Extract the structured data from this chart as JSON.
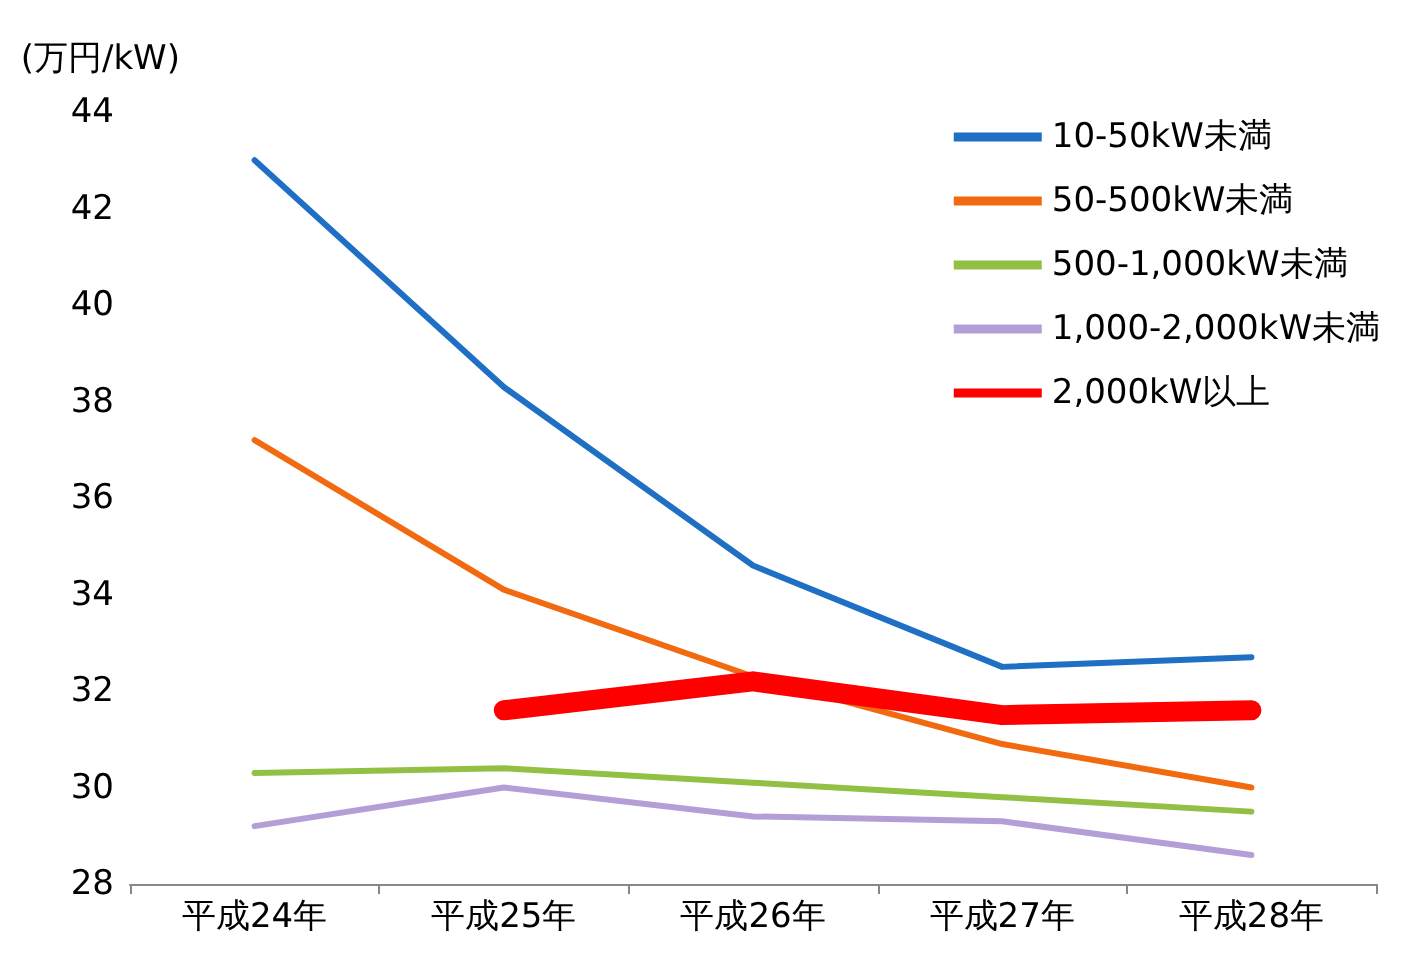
{
  "chart_data": {
    "type": "line",
    "ylabel": "(万円/kW)",
    "categories": [
      "平成24年",
      "平成25年",
      "平成26年",
      "平成27年",
      "平成28年"
    ],
    "ylim": [
      28,
      44
    ],
    "yticks": [
      28,
      30,
      32,
      34,
      36,
      38,
      40,
      42,
      44
    ],
    "grid": false,
    "legend": "top right",
    "marker": "none",
    "line_style": "solid",
    "series": [
      {
        "name": "10-50kW未満",
        "color": "#1f6fc5",
        "values": [
          43.0,
          38.3,
          34.6,
          32.5,
          32.7
        ]
      },
      {
        "name": "50-500kW未満",
        "color": "#f26a10",
        "values": [
          37.2,
          34.1,
          32.3,
          30.9,
          30.0
        ]
      },
      {
        "name": "500-1,000kW未満",
        "color": "#92c045",
        "values": [
          30.3,
          30.4,
          30.1,
          29.8,
          29.5
        ]
      },
      {
        "name": "1,000-2,000kW未満",
        "color": "#b39fd6",
        "values": [
          29.2,
          30.0,
          29.4,
          29.3,
          28.6
        ]
      },
      {
        "name": "2,000kW以上",
        "color": "#ff0000",
        "values": [
          null,
          31.6,
          32.2,
          31.5,
          31.6
        ]
      }
    ]
  }
}
